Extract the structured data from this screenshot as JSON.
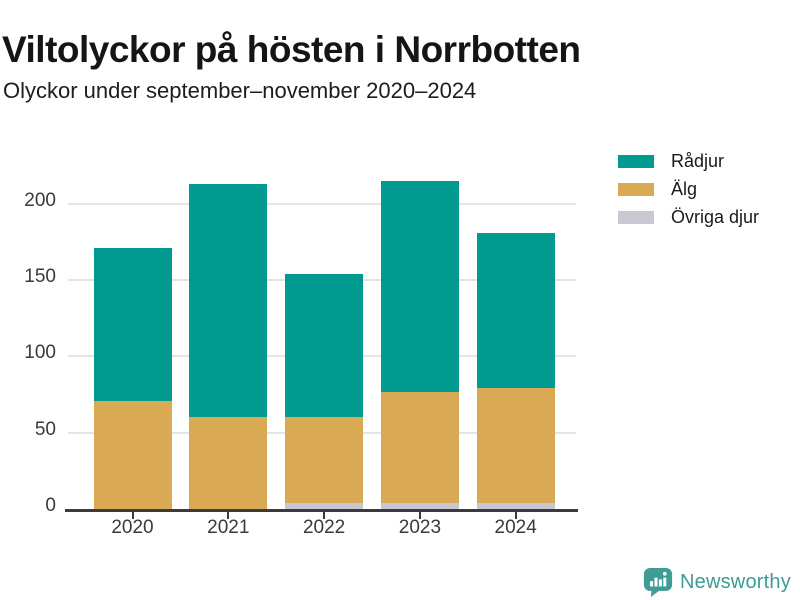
{
  "page": {
    "background": "#ffffff"
  },
  "chart_data": {
    "type": "bar",
    "stacked": true,
    "title": "Viltolyckor på hösten i Norrbotten",
    "subtitle": "Olyckor under september–november 2020–2024",
    "categories": [
      "2020",
      "2021",
      "2022",
      "2023",
      "2024"
    ],
    "series": [
      {
        "name": "Rådjur",
        "color": "#009a91",
        "values": [
          100,
          153,
          94,
          138,
          102
        ]
      },
      {
        "name": "Älg",
        "color": "#d9aa53",
        "values": [
          71,
          60,
          56,
          73,
          75
        ]
      },
      {
        "name": "Övriga djur",
        "color": "#c8c7d3",
        "values": [
          0,
          0,
          4,
          4,
          4
        ]
      }
    ],
    "yticks": [
      0,
      50,
      100,
      150,
      200
    ],
    "ylim": [
      0,
      222
    ],
    "grid": true,
    "legend_position": "top-right",
    "axis_color": "#3b3b3b",
    "gridline_color": "#e4e4e4",
    "tick_label_color": "#3a3a3a"
  },
  "footer": {
    "brand": "Newsworthy",
    "brand_color": "#3e9c94",
    "icon": "newsworthy-bar-chart-bubble-icon"
  }
}
